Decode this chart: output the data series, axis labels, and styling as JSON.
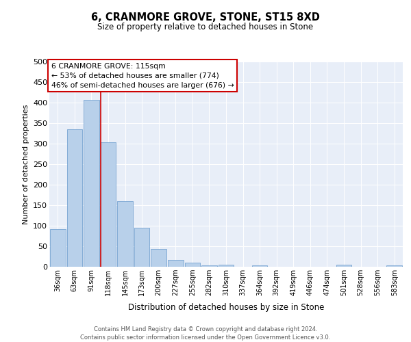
{
  "title": "6, CRANMORE GROVE, STONE, ST15 8XD",
  "subtitle": "Size of property relative to detached houses in Stone",
  "xlabel": "Distribution of detached houses by size in Stone",
  "ylabel": "Number of detached properties",
  "bar_labels": [
    "36sqm",
    "63sqm",
    "91sqm",
    "118sqm",
    "145sqm",
    "173sqm",
    "200sqm",
    "227sqm",
    "255sqm",
    "282sqm",
    "310sqm",
    "337sqm",
    "364sqm",
    "392sqm",
    "419sqm",
    "446sqm",
    "474sqm",
    "501sqm",
    "528sqm",
    "556sqm",
    "583sqm"
  ],
  "bar_values": [
    92,
    335,
    407,
    303,
    160,
    95,
    44,
    17,
    10,
    3,
    5,
    0,
    4,
    0,
    0,
    0,
    0,
    5,
    0,
    0,
    3
  ],
  "bar_color": "#b8d0ea",
  "bar_edgecolor": "#6699cc",
  "vline_color": "#cc0000",
  "annotation_title": "6 CRANMORE GROVE: 115sqm",
  "annotation_line1": "← 53% of detached houses are smaller (774)",
  "annotation_line2": "46% of semi-detached houses are larger (676) →",
  "annotation_box_color": "#cc0000",
  "ylim": [
    0,
    500
  ],
  "yticks": [
    0,
    50,
    100,
    150,
    200,
    250,
    300,
    350,
    400,
    450,
    500
  ],
  "background_color": "#e8eef8",
  "footer_line1": "Contains HM Land Registry data © Crown copyright and database right 2024.",
  "footer_line2": "Contains public sector information licensed under the Open Government Licence v3.0."
}
